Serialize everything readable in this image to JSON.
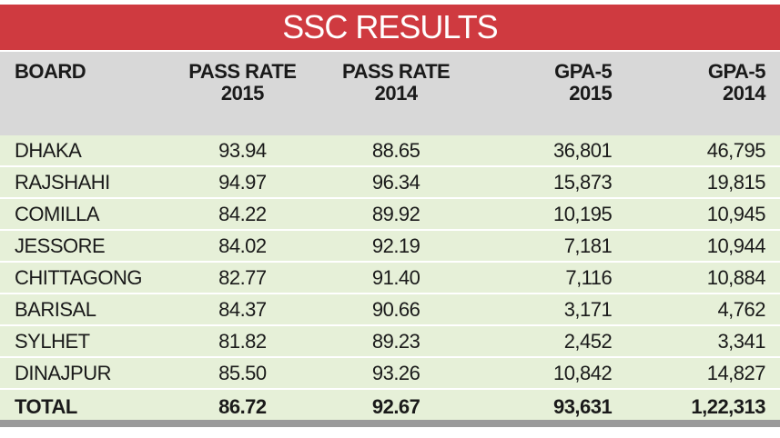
{
  "header": {
    "title": "SSC RESULTS"
  },
  "table": {
    "columns": [
      [
        "BOARD"
      ],
      [
        "PASS RATE",
        "2015"
      ],
      [
        "PASS RATE",
        "2014"
      ],
      [
        "GPA-5",
        "2015"
      ],
      [
        "GPA-5",
        "2014"
      ]
    ],
    "rows": [
      [
        "DHAKA",
        "93.94",
        "88.65",
        "36,801",
        "46,795"
      ],
      [
        "RAJSHAHI",
        "94.97",
        "96.34",
        "15,873",
        "19,815"
      ],
      [
        "COMILLA",
        "84.22",
        "89.92",
        "10,195",
        "10,945"
      ],
      [
        "JESSORE",
        "84.02",
        "92.19",
        "7,181",
        "10,944"
      ],
      [
        "CHITTAGONG",
        "82.77",
        "91.40",
        "7,116",
        "10,884"
      ],
      [
        "BARISAL",
        "84.37",
        "90.66",
        "3,171",
        "4,762"
      ],
      [
        "SYLHET",
        "81.82",
        "89.23",
        "2,452",
        "3,341"
      ],
      [
        "DINAJPUR",
        "85.50",
        "93.26",
        "10,842",
        "14,827"
      ]
    ],
    "total": [
      "TOTAL",
      "86.72",
      "92.67",
      "93,631",
      "1,22,313"
    ]
  }
}
